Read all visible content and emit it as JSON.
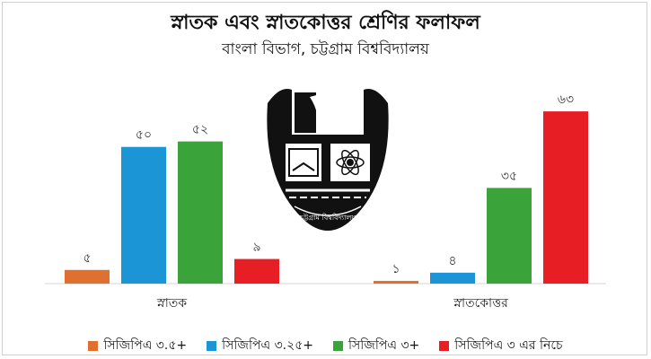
{
  "chart_data": {
    "type": "bar",
    "title": "স্নাতক এবং স্নাতকোত্তর শ্রেণির ফলাফল",
    "subtitle": "বাংলা বিভাগ, চট্টগ্রাম বিশ্ববিদ্যালয়",
    "categories": [
      "স্নাতক",
      "স্নাতকোত্তর"
    ],
    "series": [
      {
        "name": "সিজিপিএ ৩.৫+",
        "color": "#e07030",
        "values": [
          5,
          1
        ],
        "labels": [
          "৫",
          "১"
        ]
      },
      {
        "name": "সিজিপিএ ৩.২৫+",
        "color": "#1b95d6",
        "values": [
          50,
          4
        ],
        "labels": [
          "৫০",
          "৪"
        ]
      },
      {
        "name": "সিজিপিএ ৩+",
        "color": "#3aa43a",
        "values": [
          52,
          35
        ],
        "labels": [
          "৫২",
          "৩৫"
        ]
      },
      {
        "name": "সিজিপিএ ৩ এর নিচে",
        "color": "#e81e25",
        "values": [
          9,
          63
        ],
        "labels": [
          "৯",
          "৬৩"
        ]
      }
    ],
    "ylim": [
      0,
      65
    ],
    "grid": false,
    "legend": "bottom"
  },
  "emblem": {
    "text": "চট্টগ্রাম বিশ্ববিদ্যালয়"
  }
}
